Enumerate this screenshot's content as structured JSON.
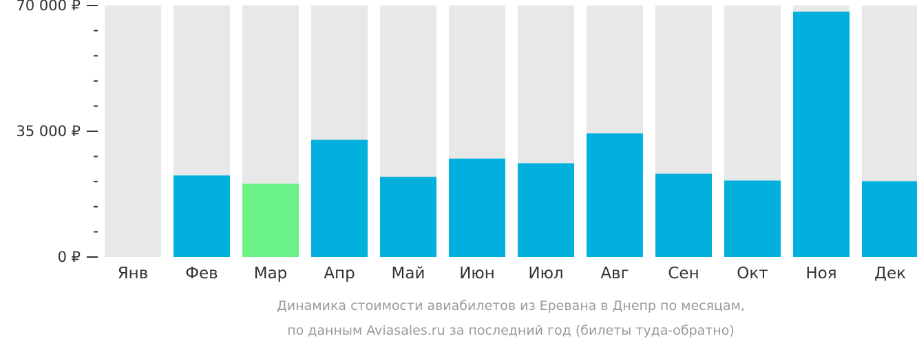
{
  "chart_data": {
    "type": "bar",
    "categories": [
      "Янв",
      "Фев",
      "Мар",
      "Апр",
      "Май",
      "Июн",
      "Июл",
      "Авг",
      "Сен",
      "Окт",
      "Ноя",
      "Дек"
    ],
    "values": [
      null,
      22700,
      20400,
      32600,
      22300,
      27400,
      26100,
      34400,
      23200,
      21300,
      68300,
      21100
    ],
    "highlight_index": 2,
    "ylim": [
      0,
      70000
    ],
    "yticks": [
      {
        "value": 0,
        "label": "0 ₽"
      },
      {
        "value": 35000,
        "label": "35 000 ₽"
      },
      {
        "value": 70000,
        "label": "70 000 ₽"
      }
    ],
    "minor_tick_step": 7000,
    "colors": {
      "bar": "#02b0dd",
      "highlight": "#6bf287",
      "background_bar": "#e8e8e8",
      "axis": "#333333",
      "caption": "#9a9a9a"
    },
    "caption": {
      "line1": "Динамика стоимости авиабилетов из Еревана в Днепр по месяцам,",
      "line2": "по данным Aviasales.ru за последний год (билеты туда-обратно)"
    }
  }
}
